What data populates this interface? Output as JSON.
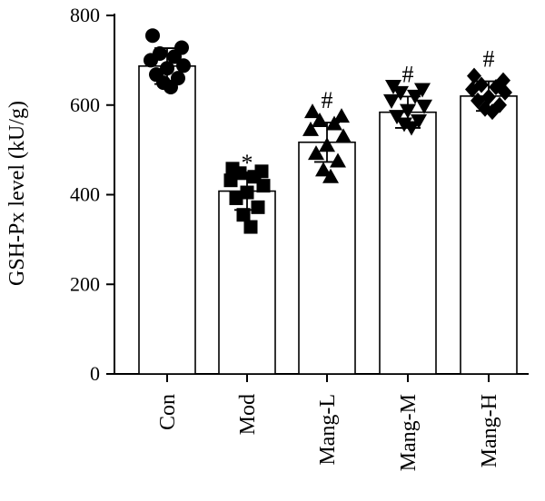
{
  "chart_data": {
    "type": "bar",
    "title": "",
    "xlabel": "",
    "ylabel": "GSH-Px level (kU/g)",
    "ylim": [
      0,
      800
    ],
    "yticks": [
      0,
      200,
      400,
      600,
      800
    ],
    "grid": false,
    "categories": [
      "Con",
      "Mod",
      "Mang-L",
      "Mang-M",
      "Mang-H"
    ],
    "values": [
      687,
      408,
      517,
      584,
      620
    ],
    "error": [
      40,
      42,
      44,
      35,
      33
    ],
    "significance": [
      "",
      "*",
      "#",
      "#",
      "#"
    ],
    "marker_shapes": [
      "circle",
      "square",
      "triangle-up",
      "triangle-down",
      "diamond"
    ],
    "points": [
      [
        755,
        728,
        715,
        708,
        700,
        688,
        682,
        668,
        660,
        650,
        640
      ],
      [
        458,
        452,
        448,
        440,
        432,
        420,
        405,
        392,
        372,
        355,
        328
      ],
      [
        585,
        575,
        565,
        558,
        545,
        530,
        510,
        492,
        475,
        455,
        440
      ],
      [
        642,
        635,
        628,
        620,
        610,
        598,
        588,
        575,
        565,
        558,
        550
      ],
      [
        665,
        655,
        645,
        640,
        635,
        628,
        618,
        610,
        600,
        592,
        585
      ]
    ]
  }
}
